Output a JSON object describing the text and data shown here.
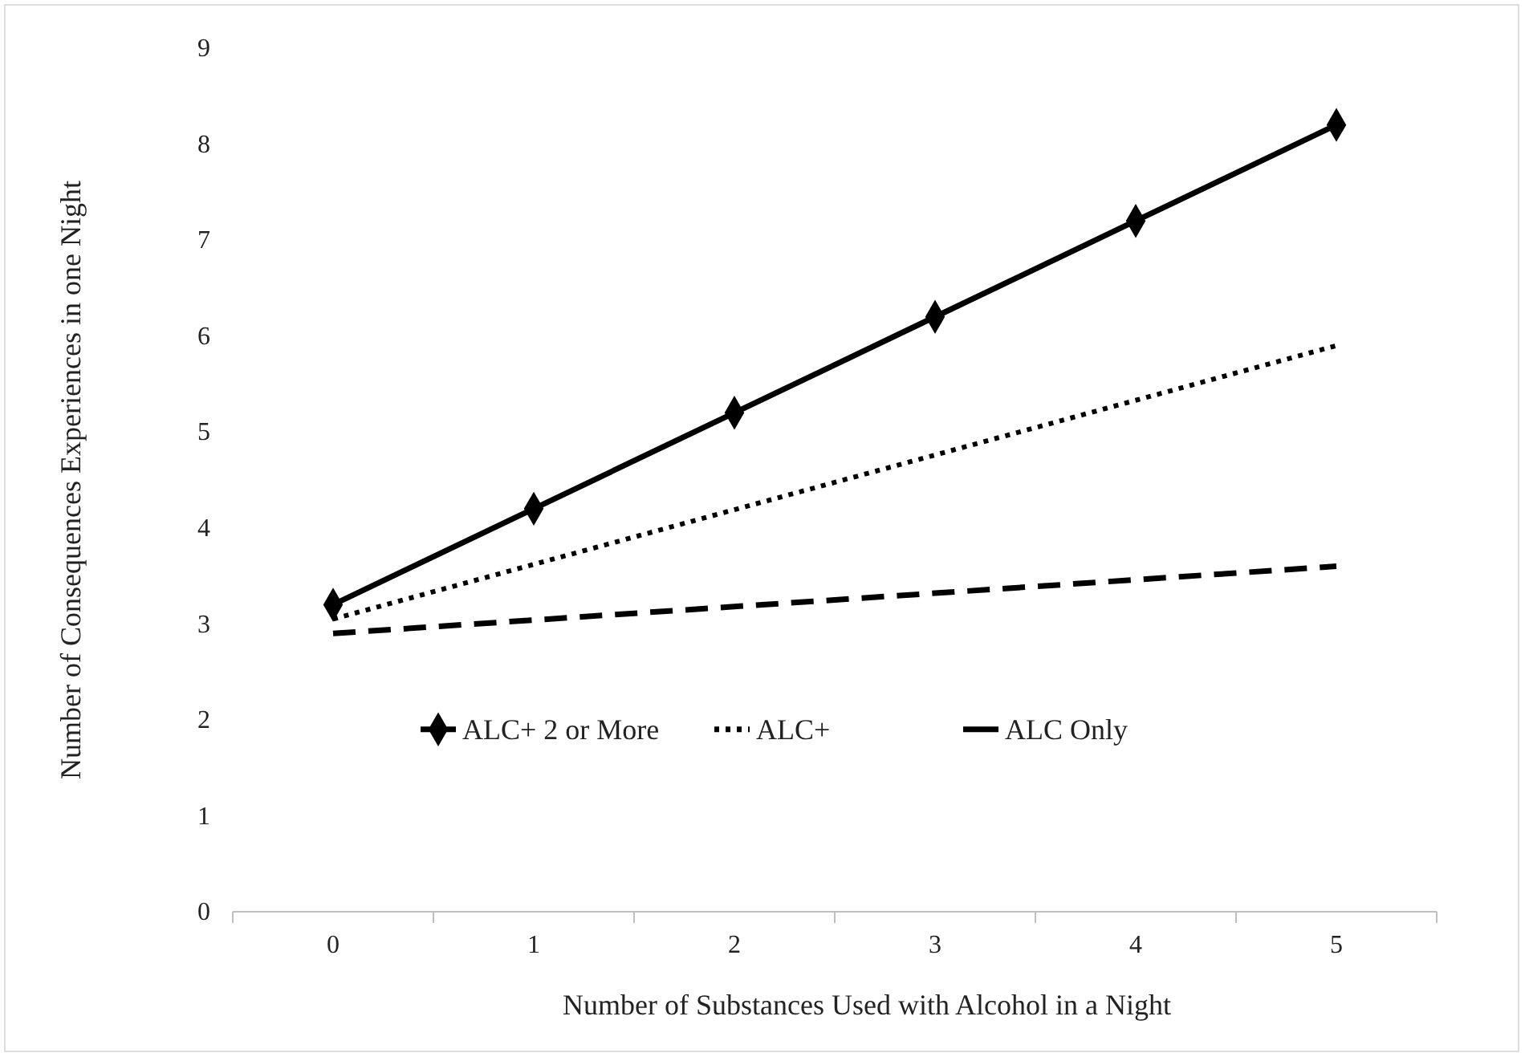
{
  "chart_data": {
    "type": "line",
    "xlabel": "Number of Substances Used with Alcohol in a Night",
    "ylabel": "Number of Consequences Experiences in one Night",
    "categories": [
      "0",
      "1",
      "2",
      "3",
      "4",
      "5"
    ],
    "series": [
      {
        "name": "ALC+ 2 or More",
        "color": "#000000",
        "values": [
          3.2,
          4.2,
          5.2,
          6.2,
          7.2,
          8.2
        ],
        "marker": "diamond",
        "line_style": "solid"
      },
      {
        "name": "ALC+",
        "color": "#000000",
        "values": [
          3.05,
          3.62,
          4.19,
          4.76,
          5.33,
          5.9
        ],
        "marker": "none",
        "line_style": "dotted"
      },
      {
        "name": "ALC Only",
        "color": "#000000",
        "values": [
          2.9,
          3.04,
          3.18,
          3.32,
          3.46,
          3.6
        ],
        "marker": "none",
        "line_style": "dashed"
      }
    ],
    "ylim": [
      0,
      9
    ],
    "yticks": [
      0,
      1,
      2,
      3,
      4,
      5,
      6,
      7,
      8,
      9
    ],
    "grid": false,
    "legend": "bottom"
  }
}
